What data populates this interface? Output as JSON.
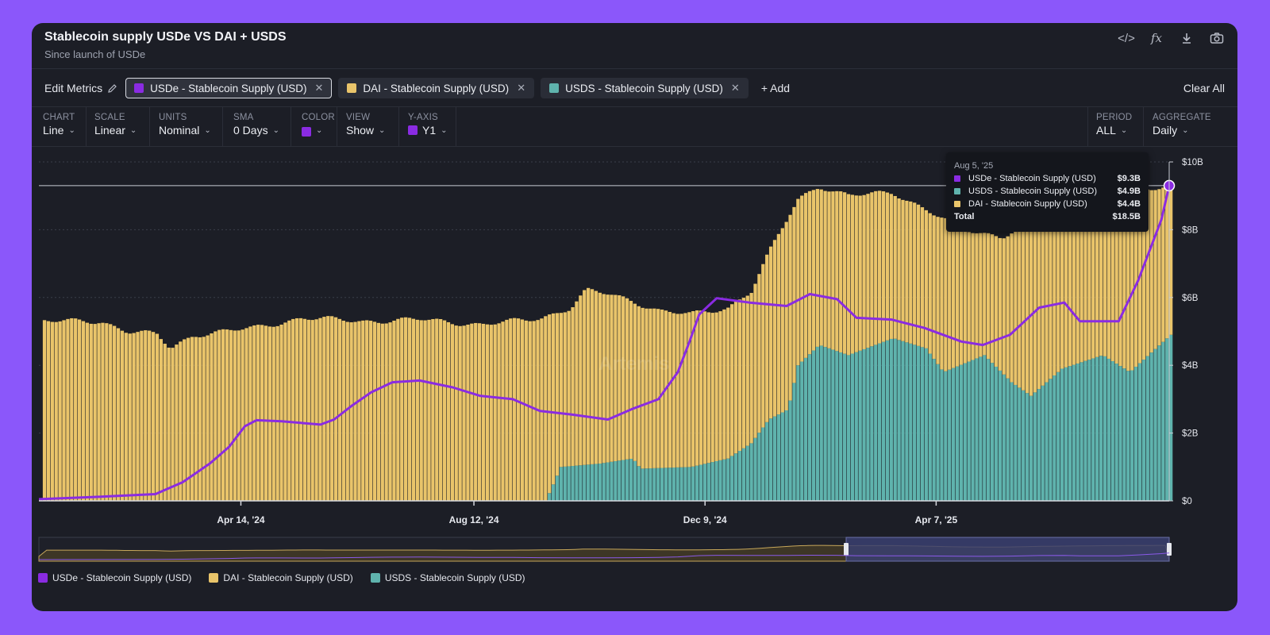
{
  "header": {
    "title": "Stablecoin supply USDe VS DAI + USDS",
    "subtitle": "Since launch of USDe",
    "tools": [
      {
        "name": "embed-code-icon",
        "glyph": "</>"
      },
      {
        "name": "formula-icon",
        "glyph": "fx"
      },
      {
        "name": "download-icon",
        "glyph": "⤓"
      },
      {
        "name": "camera-icon",
        "glyph": "📷"
      }
    ]
  },
  "metrics": {
    "edit_label": "Edit Metrics",
    "add_label": "+ Add",
    "clear_label": "Clear All",
    "items": [
      {
        "label": "USDe - Stablecoin Supply (USD)",
        "color": "#8a2be2"
      },
      {
        "label": "DAI - Stablecoin Supply (USD)",
        "color": "#e9c46a"
      },
      {
        "label": "USDS - Stablecoin Supply (USD)",
        "color": "#5fb3ad"
      }
    ]
  },
  "controls": {
    "chart": {
      "label": "CHART",
      "value": "Line"
    },
    "scale": {
      "label": "SCALE",
      "value": "Linear"
    },
    "units": {
      "label": "UNITS",
      "value": "Nominal"
    },
    "sma": {
      "label": "SMA",
      "value": "0 Days"
    },
    "color": {
      "label": "COLOR",
      "value": "#8a2be2"
    },
    "view": {
      "label": "VIEW",
      "value": "Show"
    },
    "yaxis": {
      "label": "Y-AXIS",
      "value": "Y1",
      "color": "#8a2be2"
    },
    "period": {
      "label": "PERIOD",
      "value": "ALL"
    },
    "aggregate": {
      "label": "AGGREGATE",
      "value": "Daily"
    }
  },
  "tooltip": {
    "date": "Aug 5, '25",
    "rows": [
      {
        "name": "USDe - Stablecoin Supply (USD)",
        "value": "$9.3B",
        "color": "#8a2be2"
      },
      {
        "name": "USDS - Stablecoin Supply (USD)",
        "value": "$4.9B",
        "color": "#5fb3ad"
      },
      {
        "name": "DAI - Stablecoin Supply (USD)",
        "value": "$4.4B",
        "color": "#e9c46a"
      }
    ],
    "total_label": "Total",
    "total_value": "$18.5B"
  },
  "watermark": "Artemis",
  "chart_data": {
    "type": "line",
    "title": "Stablecoin supply USDe VS DAI + USDS",
    "subtitle": "Since launch of USDe",
    "x_start": "2024-01-01",
    "x_end": "2025-08-05",
    "x_ticks": [
      {
        "label": "Apr 14, '24",
        "date": "2024-04-14"
      },
      {
        "label": "Aug 12, '24",
        "date": "2024-08-12"
      },
      {
        "label": "Dec 9, '24",
        "date": "2024-12-09"
      },
      {
        "label": "Apr 7, '25",
        "date": "2025-04-07"
      }
    ],
    "y_ticks": [
      {
        "label": "$0",
        "value": 0
      },
      {
        "label": "$2B",
        "value": 2
      },
      {
        "label": "$4B",
        "value": 4
      },
      {
        "label": "$6B",
        "value": 6
      },
      {
        "label": "$8B",
        "value": 8
      },
      {
        "label": "$10B",
        "value": 10
      }
    ],
    "ylim": [
      0,
      10
    ],
    "units": "USD billions",
    "grid": true,
    "legend_position": "bottom-left",
    "series": [
      {
        "name": "USDe - Stablecoin Supply (USD)",
        "style": "line",
        "color": "#8a2be2",
        "points": [
          [
            "2024-01-01",
            0.05
          ],
          [
            "2024-02-01",
            0.12
          ],
          [
            "2024-03-01",
            0.2
          ],
          [
            "2024-03-15",
            0.55
          ],
          [
            "2024-03-29",
            1.1
          ],
          [
            "2024-04-08",
            1.6
          ],
          [
            "2024-04-16",
            2.2
          ],
          [
            "2024-04-22",
            2.38
          ],
          [
            "2024-05-05",
            2.35
          ],
          [
            "2024-05-25",
            2.25
          ],
          [
            "2024-06-01",
            2.4
          ],
          [
            "2024-06-10",
            2.8
          ],
          [
            "2024-06-20",
            3.2
          ],
          [
            "2024-07-01",
            3.5
          ],
          [
            "2024-07-15",
            3.55
          ],
          [
            "2024-08-01",
            3.35
          ],
          [
            "2024-08-15",
            3.1
          ],
          [
            "2024-09-01",
            3.0
          ],
          [
            "2024-09-15",
            2.65
          ],
          [
            "2024-10-01",
            2.55
          ],
          [
            "2024-10-20",
            2.4
          ],
          [
            "2024-11-01",
            2.7
          ],
          [
            "2024-11-15",
            3.0
          ],
          [
            "2024-11-25",
            3.8
          ],
          [
            "2024-12-01",
            4.7
          ],
          [
            "2024-12-06",
            5.5
          ],
          [
            "2024-12-15",
            5.98
          ],
          [
            "2025-01-01",
            5.85
          ],
          [
            "2025-01-20",
            5.75
          ],
          [
            "2025-02-01",
            6.1
          ],
          [
            "2025-02-15",
            5.95
          ],
          [
            "2025-02-25",
            5.4
          ],
          [
            "2025-03-15",
            5.35
          ],
          [
            "2025-04-01",
            5.1
          ],
          [
            "2025-04-20",
            4.7
          ],
          [
            "2025-05-01",
            4.6
          ],
          [
            "2025-05-15",
            4.9
          ],
          [
            "2025-05-30",
            5.7
          ],
          [
            "2025-06-12",
            5.85
          ],
          [
            "2025-06-20",
            5.3
          ],
          [
            "2025-07-10",
            5.3
          ],
          [
            "2025-07-20",
            6.5
          ],
          [
            "2025-08-01",
            8.3
          ],
          [
            "2025-08-05",
            9.3
          ]
        ]
      },
      {
        "name": "DAI - Stablecoin Supply (USD)",
        "style": "stacked-bar",
        "color": "#e9c46a",
        "stack_total_points": [
          [
            "2024-01-01",
            5.3
          ],
          [
            "2024-02-01",
            5.3
          ],
          [
            "2024-02-15",
            5.0
          ],
          [
            "2024-03-01",
            4.9
          ],
          [
            "2024-03-08",
            4.5
          ],
          [
            "2024-03-20",
            4.9
          ],
          [
            "2024-04-20",
            5.1
          ],
          [
            "2024-05-15",
            5.4
          ],
          [
            "2024-06-15",
            5.3
          ],
          [
            "2024-07-15",
            5.35
          ],
          [
            "2024-08-15",
            5.2
          ],
          [
            "2024-09-01",
            5.3
          ],
          [
            "2024-09-15",
            5.4
          ],
          [
            "2024-09-30",
            5.7
          ],
          [
            "2024-10-08",
            6.2
          ],
          [
            "2024-10-20",
            6.1
          ],
          [
            "2024-11-01",
            5.9
          ],
          [
            "2024-11-15",
            5.6
          ],
          [
            "2024-12-01",
            5.5
          ],
          [
            "2024-12-20",
            5.7
          ],
          [
            "2025-01-01",
            6.2
          ],
          [
            "2025-01-10",
            7.3
          ],
          [
            "2025-01-25",
            8.9
          ],
          [
            "2025-02-05",
            9.3
          ],
          [
            "2025-02-20",
            9.0
          ],
          [
            "2025-03-15",
            9.1
          ],
          [
            "2025-04-01",
            8.6
          ],
          [
            "2025-04-20",
            8.0
          ],
          [
            "2025-05-10",
            7.8
          ],
          [
            "2025-06-01",
            8.5
          ],
          [
            "2025-07-01",
            9.0
          ],
          [
            "2025-08-05",
            9.3
          ]
        ]
      },
      {
        "name": "USDS - Stablecoin Supply (USD)",
        "style": "stacked-bar",
        "color": "#5fb3ad",
        "points": [
          [
            "2024-09-18",
            0.1
          ],
          [
            "2024-09-25",
            1.0
          ],
          [
            "2024-10-15",
            1.1
          ],
          [
            "2024-11-01",
            1.25
          ],
          [
            "2024-11-05",
            0.95
          ],
          [
            "2024-12-01",
            1.0
          ],
          [
            "2024-12-20",
            1.25
          ],
          [
            "2025-01-01",
            1.7
          ],
          [
            "2025-01-10",
            2.4
          ],
          [
            "2025-01-20",
            2.7
          ],
          [
            "2025-01-25",
            4.0
          ],
          [
            "2025-02-05",
            4.6
          ],
          [
            "2025-02-20",
            4.3
          ],
          [
            "2025-03-15",
            4.8
          ],
          [
            "2025-04-01",
            4.5
          ],
          [
            "2025-04-10",
            3.8
          ],
          [
            "2025-05-01",
            4.3
          ],
          [
            "2025-05-15",
            3.5
          ],
          [
            "2025-05-25",
            3.1
          ],
          [
            "2025-06-10",
            3.9
          ],
          [
            "2025-07-01",
            4.3
          ],
          [
            "2025-07-15",
            3.8
          ],
          [
            "2025-08-05",
            4.9
          ]
        ]
      }
    ]
  }
}
